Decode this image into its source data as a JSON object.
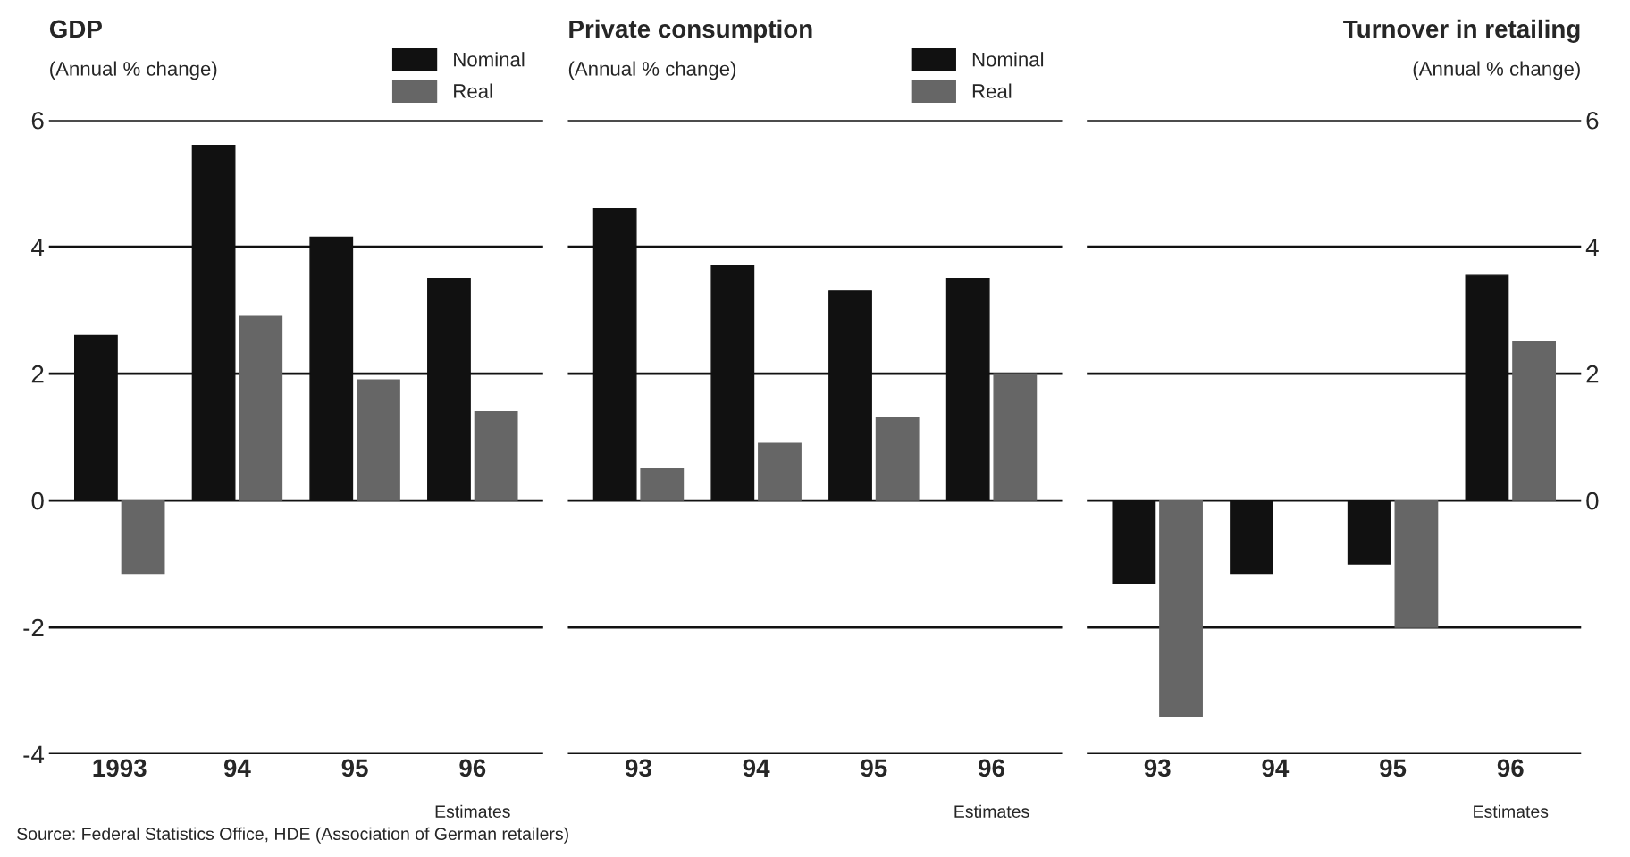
{
  "chart_data": [
    {
      "type": "bar",
      "title": "GDP",
      "subtitle": "(Annual % change)",
      "categories": [
        "1993",
        "94",
        "95",
        "96"
      ],
      "series": [
        {
          "name": "Nominal",
          "color": "#111111",
          "values": [
            2.6,
            5.6,
            4.15,
            3.5
          ]
        },
        {
          "name": "Real",
          "color": "#666666",
          "values": [
            -1.15,
            2.9,
            1.9,
            1.4
          ]
        }
      ],
      "ylim": [
        -4,
        6
      ],
      "yticks": [
        -4,
        -2,
        0,
        2,
        4,
        6
      ],
      "grid": "y",
      "legend": "top right",
      "annotations": [
        "Estimates",
        "Source: Federal Statistics Office, HDE (Association of German retailers)"
      ]
    },
    {
      "type": "bar",
      "title": "Private consumption",
      "subtitle": "(Annual % change)",
      "categories": [
        "93",
        "94",
        "95",
        "96"
      ],
      "series": [
        {
          "name": "Nominal",
          "color": "#111111",
          "values": [
            4.6,
            3.7,
            3.3,
            3.5
          ]
        },
        {
          "name": "Real",
          "color": "#666666",
          "values": [
            0.5,
            0.9,
            1.3,
            2.0
          ]
        }
      ],
      "ylim": [
        -4,
        6
      ],
      "yticks": [
        -4,
        -2,
        0,
        2,
        4,
        6
      ],
      "grid": "y",
      "legend": "top right",
      "tick_labels": "x",
      "annotations": [
        "Estimates"
      ]
    },
    {
      "type": "bar",
      "title": "Turnover in retailing",
      "subtitle": "(Annual % change)",
      "categories": [
        "93",
        "94",
        "95",
        "96"
      ],
      "series": [
        {
          "color": "#111111",
          "values": [
            -1.3,
            -1.15,
            -1.0,
            3.55
          ],
          "axis": "y2"
        },
        {
          "color": "#666666",
          "values": [
            -3.4,
            null,
            -2.0,
            2.5
          ],
          "axis": "y2"
        }
      ],
      "y2lim": [
        -4,
        6
      ],
      "y2ticks": [
        {
          "value": -4,
          "label": null
        },
        {
          "value": -2,
          "label": null
        },
        0,
        2,
        4,
        6
      ],
      "grid": "y",
      "annotations": [
        "Estimates"
      ]
    }
  ]
}
